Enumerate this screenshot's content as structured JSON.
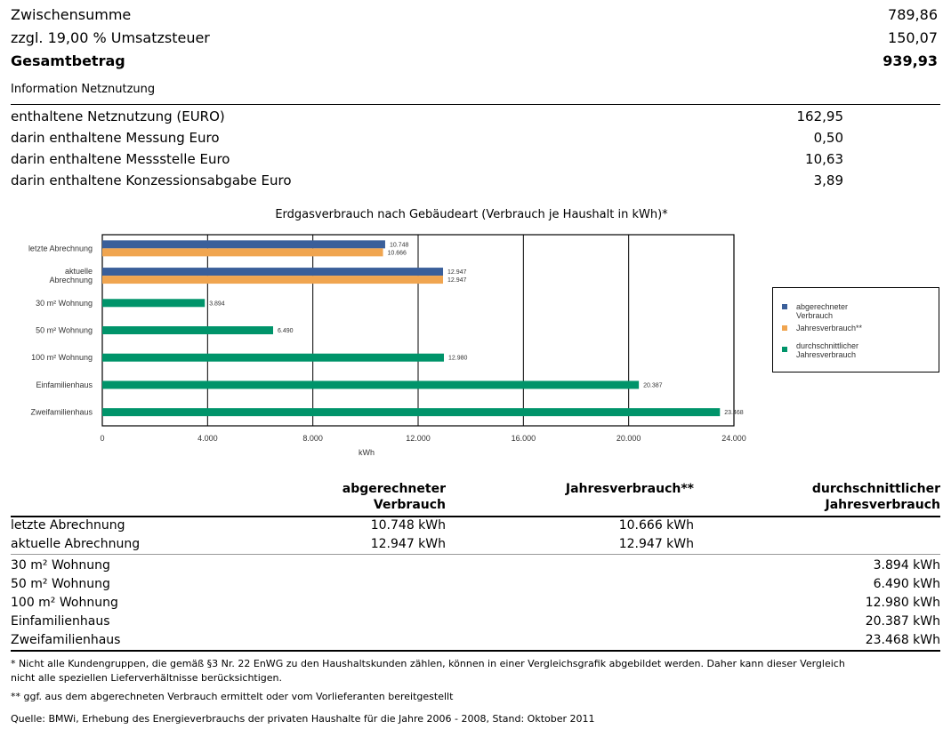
{
  "summary": {
    "subtotal_label": "Zwischensumme",
    "subtotal_value": "789,86",
    "vat_label": "zzgl. 19,00 % Umsatzsteuer",
    "vat_value": "150,07",
    "total_label": "Gesamtbetrag",
    "total_value": "939,93"
  },
  "info": {
    "title": "Information Netznutzung",
    "rows": [
      {
        "label": "enthaltene Netznutzung (EURO)",
        "value": "162,95"
      },
      {
        "label": "darin enthaltene Messung Euro",
        "value": "0,50"
      },
      {
        "label": "darin enthaltene Messstelle Euro",
        "value": "10,63"
      },
      {
        "label": "darin enthaltene Konzessionsabgabe Euro",
        "value": "3,89"
      }
    ]
  },
  "chart_data": {
    "type": "bar",
    "orientation": "horizontal",
    "title": "Erdgasverbrauch nach Gebäudeart (Verbrauch je Haushalt in kWh)*",
    "xlabel": "kWh",
    "ylabel": "",
    "xlim": [
      0,
      24000
    ],
    "x_ticks": [
      0,
      4000,
      8000,
      12000,
      16000,
      20000,
      24000
    ],
    "x_tick_labels": [
      "0",
      "4.000",
      "8.000",
      "12.000",
      "16.000",
      "20.000",
      "24.000"
    ],
    "grid": "vertical",
    "legend_position": "right",
    "categories": [
      "letzte Abrechnung",
      "aktuelle Abrechnung",
      "30 m² Wohnung",
      "50 m² Wohnung",
      "100 m² Wohnung",
      "Einfamilienhaus",
      "Zweifamilienhaus"
    ],
    "category_labels": [
      [
        "letzte Abrechnung"
      ],
      [
        "aktuelle",
        "Abrechnung"
      ],
      [
        "30 m² Wohnung"
      ],
      [
        "50 m² Wohnung"
      ],
      [
        "100 m² Wohnung"
      ],
      [
        "Einfamilienhaus"
      ],
      [
        "Zweifamilienhaus"
      ]
    ],
    "series": [
      {
        "name": "abgerechneter Verbrauch",
        "color": "#3a5f9a",
        "values": [
          10748,
          12947,
          null,
          null,
          null,
          null,
          null
        ],
        "labels": [
          "10.748",
          "12.947",
          null,
          null,
          null,
          null,
          null
        ]
      },
      {
        "name": "Jahresverbrauch**",
        "color": "#f0a550",
        "values": [
          10666,
          12947,
          null,
          null,
          null,
          null,
          null
        ],
        "labels": [
          "10.666",
          "12.947",
          null,
          null,
          null,
          null,
          null
        ]
      },
      {
        "name": "durchschnittlicher Jahresverbrauch",
        "color": "#00946a",
        "values": [
          null,
          null,
          3894,
          6490,
          12980,
          20387,
          23468
        ],
        "labels": [
          null,
          null,
          "3.894",
          "6.490",
          "12.980",
          "20.387",
          "23.468"
        ]
      }
    ],
    "legend_labels": [
      [
        "abgerechneter Verbrauch"
      ],
      [
        "Jahresverbrauch**"
      ],
      [
        "durchschnittlicher",
        "Jahresverbrauch"
      ]
    ]
  },
  "table": {
    "headers": {
      "col1": [
        "abgerechneter",
        "Verbrauch"
      ],
      "col2": [
        "Jahresverbrauch**"
      ],
      "col3": [
        "durchschnittlicher",
        "Jahresverbrauch"
      ]
    },
    "rows": [
      {
        "label": "letzte Abrechnung",
        "billed": "10.748 kWh",
        "annual": "10.666 kWh",
        "avg": ""
      },
      {
        "label": "aktuelle Abrechnung",
        "billed": "12.947 kWh",
        "annual": "12.947 kWh",
        "avg": ""
      },
      {
        "label": "30 m² Wohnung",
        "billed": "",
        "annual": "",
        "avg": "3.894 kWh"
      },
      {
        "label": "50 m² Wohnung",
        "billed": "",
        "annual": "",
        "avg": "6.490 kWh"
      },
      {
        "label": "100 m² Wohnung",
        "billed": "",
        "annual": "",
        "avg": "12.980 kWh"
      },
      {
        "label": "Einfamilienhaus",
        "billed": "",
        "annual": "",
        "avg": "20.387 kWh"
      },
      {
        "label": "Zweifamilienhaus",
        "billed": "",
        "annual": "",
        "avg": "23.468 kWh"
      }
    ]
  },
  "footnotes": {
    "note1_line1": "* Nicht alle Kundengruppen, die gemäß §3 Nr. 22 EnWG zu den Haushaltskunden zählen, können in einer Vergleichsgrafik abgebildet werden. Daher kann dieser Vergleich",
    "note1_line2": "nicht alle speziellen Lieferverhältnisse berücksichtigen.",
    "note2": "** ggf. aus dem abgerechneten Verbrauch ermittelt oder vom Vorlieferanten bereitgestellt",
    "source": "Quelle: BMWi, Erhebung des Energieverbrauchs der privaten Haushalte für die Jahre 2006 - 2008, Stand: Oktober 2011"
  }
}
